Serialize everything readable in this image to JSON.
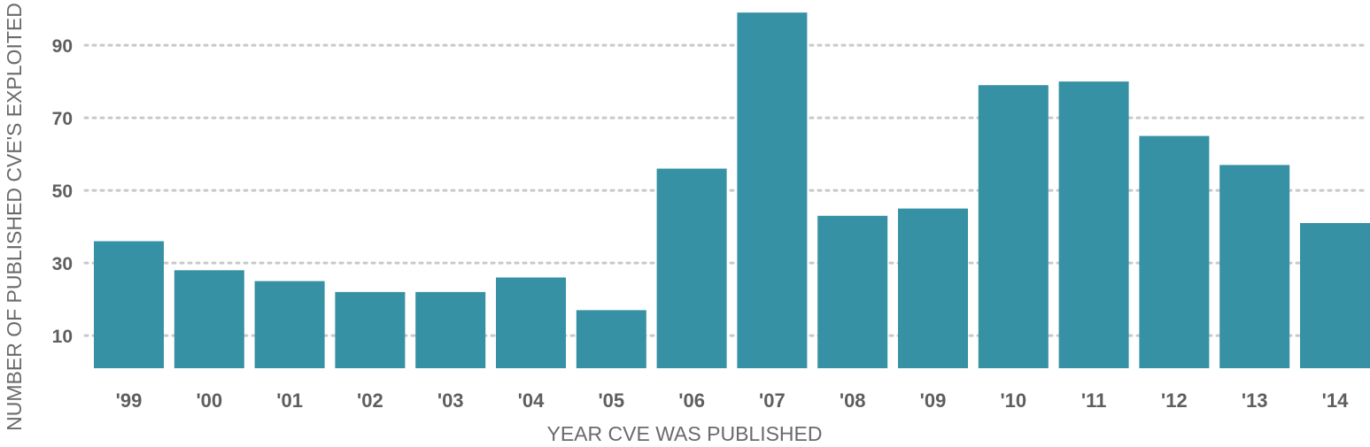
{
  "chart_data": {
    "type": "bar",
    "title": "",
    "xlabel": "YEAR CVE WAS PUBLISHED",
    "ylabel": "NUMBER OF PUBLISHED CVE'S EXPLOITED",
    "categories": [
      "'99",
      "'00",
      "'01",
      "'02",
      "'03",
      "'04",
      "'05",
      "'06",
      "'07",
      "'08",
      "'09",
      "'10",
      "'11",
      "'12",
      "'13",
      "'14"
    ],
    "values": [
      36,
      28,
      25,
      22,
      22,
      26,
      17,
      56,
      99,
      43,
      45,
      79,
      80,
      65,
      57,
      41
    ],
    "yticks": [
      10,
      30,
      50,
      70,
      90
    ],
    "ylim": [
      1,
      100
    ],
    "grid": true,
    "colors": {
      "bar": "#3691a4",
      "grid": "#c9c9c9",
      "text": "#5e5e5e"
    }
  }
}
